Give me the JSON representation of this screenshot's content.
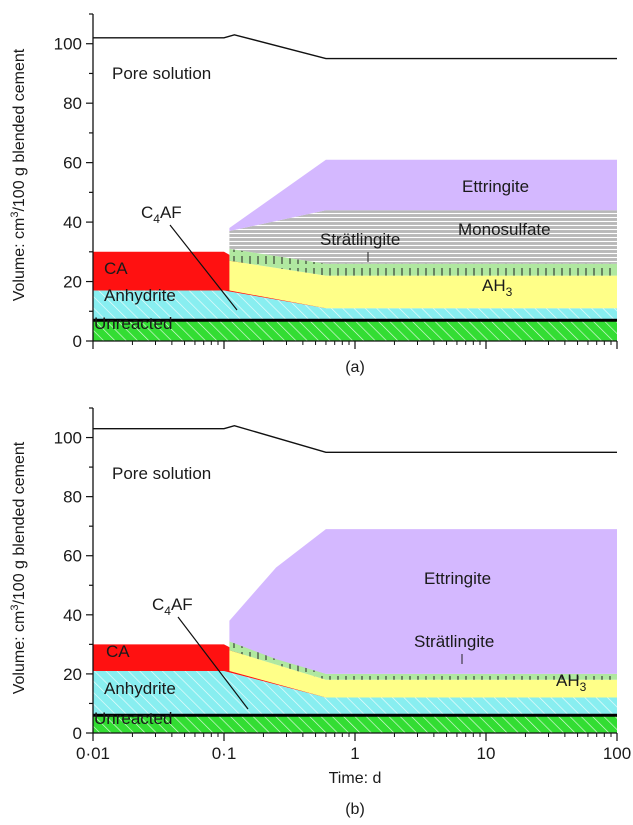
{
  "chart_data": [
    {
      "panel_label": "(a)",
      "type": "area",
      "x_scale": "log",
      "xlim": [
        0.01,
        100
      ],
      "ylim": [
        0,
        110
      ],
      "yticks": [
        0,
        20,
        40,
        60,
        80,
        100
      ],
      "ytick_labels": [
        "0",
        "20",
        "40",
        "60",
        "80",
        "100"
      ],
      "ylabel_parts": [
        "Volume: cm",
        "3",
        "/100 g blended cement"
      ],
      "pore_solution_line": {
        "x": [
          0.01,
          0.1,
          0.12,
          0.6,
          100
        ],
        "y": [
          102,
          102,
          103,
          95,
          95
        ]
      },
      "layers": [
        {
          "name": "Unreacted",
          "color": "#33dd33",
          "hatch": true,
          "x": [
            0.01,
            100
          ],
          "bottom": [
            0,
            0
          ],
          "top": [
            7,
            7
          ]
        },
        {
          "name": "Anhydrite",
          "color": "#88eef0",
          "hatch": true,
          "x": [
            0.01,
            0.1,
            0.6,
            100
          ],
          "bottom": [
            7,
            7,
            7,
            7
          ],
          "top": [
            17,
            17,
            11,
            11
          ]
        },
        {
          "name": "CA",
          "color": "#ff1111",
          "x": [
            0.01,
            0.1,
            0.6,
            100
          ],
          "bottom": [
            17,
            17,
            11,
            11
          ],
          "top": [
            30,
            30,
            11,
            11
          ]
        },
        {
          "name": "AH3",
          "color": "#ffff88",
          "x": [
            0.11,
            0.6,
            100
          ],
          "bottom": [
            17,
            11,
            11
          ],
          "top": [
            27,
            22,
            22
          ]
        },
        {
          "name": "Strätlingite",
          "color": "#b0e8a0",
          "ticks": true,
          "x": [
            0.11,
            0.6,
            100
          ],
          "bottom": [
            27,
            22,
            22
          ],
          "top": [
            31,
            26,
            26
          ]
        },
        {
          "name": "Monosulfate",
          "color": "#b8b8b8",
          "stripes": true,
          "x": [
            0.11,
            0.6,
            100
          ],
          "bottom": [
            31,
            26,
            26
          ],
          "top": [
            37,
            44,
            44
          ]
        },
        {
          "name": "Ettringite",
          "color": "#d4b8ff",
          "x": [
            0.11,
            0.6,
            100
          ],
          "bottom": [
            37,
            44,
            44
          ],
          "top": [
            38,
            61,
            61
          ]
        }
      ],
      "labels": {
        "pore_solution": "Pore solution",
        "ettringite": "Ettringite",
        "monosulfate": "Monosulfate",
        "stratlingite": "Strätlingite",
        "ah3_base": "AH",
        "ah3_sub": "3",
        "c4af_a": "C",
        "c4af_sub": "4",
        "c4af_b": "AF",
        "ca": "CA",
        "anhydrite": "Anhydrite",
        "unreacted": "Unreacted"
      }
    },
    {
      "panel_label": "(b)",
      "type": "area",
      "x_scale": "log",
      "xlim": [
        0.01,
        100
      ],
      "ylim": [
        0,
        110
      ],
      "yticks": [
        0,
        20,
        40,
        60,
        80,
        100
      ],
      "ytick_labels": [
        "0",
        "20",
        "40",
        "60",
        "80",
        "100"
      ],
      "xticks": [
        0.01,
        0.1,
        1,
        10,
        100
      ],
      "xtick_labels": [
        "0·01",
        "0·1",
        "1",
        "10",
        "100"
      ],
      "xlabel": "Time: d",
      "ylabel_parts": [
        "Volume: cm",
        "3",
        "/100 g blended cement"
      ],
      "pore_solution_line": {
        "x": [
          0.01,
          0.1,
          0.12,
          0.6,
          100
        ],
        "y": [
          103,
          103,
          104,
          95,
          95
        ]
      },
      "layers": [
        {
          "name": "Unreacted",
          "color": "#33dd33",
          "hatch": true,
          "x": [
            0.01,
            100
          ],
          "bottom": [
            0,
            0
          ],
          "top": [
            6,
            6
          ]
        },
        {
          "name": "Anhydrite",
          "color": "#88eef0",
          "hatch": true,
          "x": [
            0.01,
            0.1,
            0.6,
            100
          ],
          "bottom": [
            6,
            6,
            6,
            6
          ],
          "top": [
            21,
            21,
            12,
            12
          ]
        },
        {
          "name": "CA",
          "color": "#ff1111",
          "x": [
            0.01,
            0.1,
            0.6,
            100
          ],
          "bottom": [
            21,
            21,
            12,
            12
          ],
          "top": [
            30,
            30,
            12,
            12
          ]
        },
        {
          "name": "AH3",
          "color": "#ffff88",
          "x": [
            0.11,
            0.6,
            100
          ],
          "bottom": [
            21,
            12,
            12
          ],
          "top": [
            28,
            18,
            18
          ]
        },
        {
          "name": "Strätlingite",
          "color": "#b0e8a0",
          "ticks": true,
          "x": [
            0.11,
            0.6,
            100
          ],
          "bottom": [
            28,
            18,
            18
          ],
          "top": [
            31,
            20,
            20
          ]
        },
        {
          "name": "Ettringite",
          "color": "#d4b8ff",
          "x": [
            0.11,
            0.25,
            0.6,
            100
          ],
          "bottom": [
            31,
            25,
            20,
            20
          ],
          "top": [
            38,
            56,
            69,
            69
          ]
        }
      ],
      "labels": {
        "pore_solution": "Pore solution",
        "ettringite": "Ettringite",
        "stratlingite": "Strätlingite",
        "ah3_base": "AH",
        "ah3_sub": "3",
        "c4af_a": "C",
        "c4af_sub": "4",
        "c4af_b": "AF",
        "ca": "CA",
        "anhydrite": "Anhydrite",
        "unreacted": "Unreacted"
      }
    }
  ]
}
